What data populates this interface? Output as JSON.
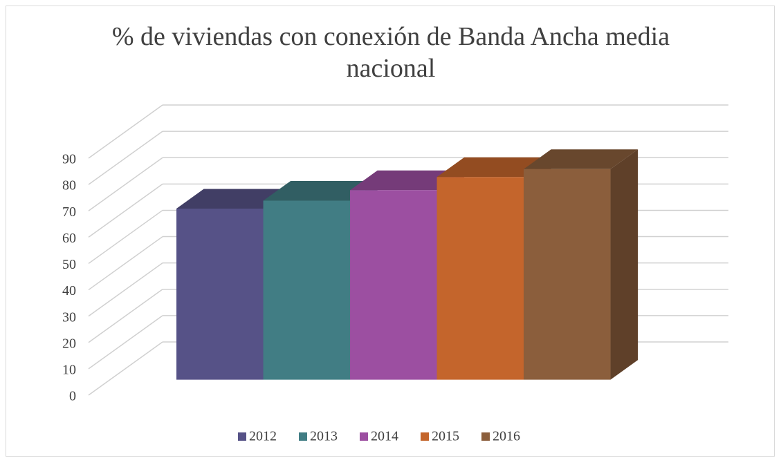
{
  "chart_data": {
    "type": "bar3d",
    "title": "% de viviendas con conexión de Banda Ancha media nacional",
    "series": [
      {
        "name": "2012",
        "color": "#565287",
        "values": [
          65
        ]
      },
      {
        "name": "2013",
        "color": "#417d84",
        "values": [
          68
        ]
      },
      {
        "name": "2014",
        "color": "#9c4fa1",
        "values": [
          72
        ]
      },
      {
        "name": "2015",
        "color": "#c4652c",
        "values": [
          77
        ]
      },
      {
        "name": "2016",
        "color": "#8b5e3c",
        "values": [
          80
        ]
      }
    ],
    "ylim": [
      0,
      90
    ],
    "yticks": [
      0,
      10,
      20,
      30,
      40,
      50,
      60,
      70,
      80,
      90
    ],
    "grid": true,
    "legend": "bottom"
  }
}
